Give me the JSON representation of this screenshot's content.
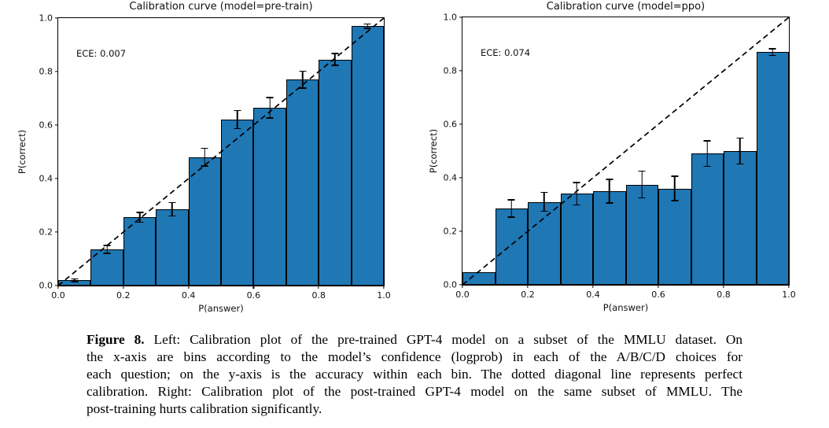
{
  "caption": {
    "label": "Figure 8.",
    "lines": [
      "Left: Calibration plot of the pre-trained GPT-4 model on a subset of the MMLU dataset. On",
      "the x-axis are bins according to the model’s confidence (logprob) in each of the A/B/C/D choices for",
      "each question; on the y-axis is the accuracy within each bin. The dotted diagonal line represents perfect",
      "calibration. Right: Calibration plot of the post-trained GPT-4 model on the same subset of MMLU. The",
      "post-training hurts calibration significantly."
    ]
  },
  "chart_data": [
    {
      "type": "bar",
      "title": "Calibration curve (model=pre-train)",
      "annotation": "ECE: 0.007",
      "xlabel": "P(answer)",
      "ylabel": "P(correct)",
      "xlim": [
        0.0,
        1.0
      ],
      "ylim": [
        0.0,
        1.0
      ],
      "grid": false,
      "legend": null,
      "x_tick_labels": [
        "0.0",
        "0.2",
        "0.4",
        "0.6",
        "0.8",
        "1.0"
      ],
      "y_tick_labels": [
        "0.0",
        "0.2",
        "0.4",
        "0.6",
        "0.8",
        "1.0"
      ],
      "bin_width": 0.1,
      "bin_starts": [
        0.0,
        0.1,
        0.2,
        0.3,
        0.4,
        0.5,
        0.6,
        0.7,
        0.8,
        0.9
      ],
      "values": [
        0.02,
        0.135,
        0.255,
        0.285,
        0.48,
        0.62,
        0.665,
        0.77,
        0.845,
        0.97
      ],
      "errors": [
        0.005,
        0.015,
        0.018,
        0.025,
        0.033,
        0.034,
        0.038,
        0.032,
        0.022,
        0.008
      ],
      "bar_color": "#1f77b4",
      "bar_edge_color": "#000000",
      "diagonal_line": "dashed y=x (perfect calibration)"
    },
    {
      "type": "bar",
      "title": "Calibration curve (model=ppo)",
      "annotation": "ECE: 0.074",
      "xlabel": "P(answer)",
      "ylabel": "P(correct)",
      "xlim": [
        0.0,
        1.0
      ],
      "ylim": [
        0.0,
        1.0
      ],
      "grid": false,
      "legend": null,
      "x_tick_labels": [
        "0.0",
        "0.2",
        "0.4",
        "0.6",
        "0.8",
        "1.0"
      ],
      "y_tick_labels": [
        "0.0",
        "0.2",
        "0.4",
        "0.6",
        "0.8",
        "1.0"
      ],
      "bin_width": 0.1,
      "bin_starts": [
        0.0,
        0.1,
        0.2,
        0.3,
        0.4,
        0.5,
        0.6,
        0.7,
        0.8,
        0.9
      ],
      "values": [
        0.047,
        0.285,
        0.31,
        0.34,
        0.35,
        0.375,
        0.36,
        0.49,
        0.5,
        0.87
      ],
      "errors": [
        0,
        0.032,
        0.035,
        0.042,
        0.044,
        0.05,
        0.046,
        0.048,
        0.048,
        0.012
      ],
      "bar_color": "#1f77b4",
      "bar_edge_color": "#000000",
      "diagonal_line": "dashed y=x (perfect calibration)"
    }
  ]
}
